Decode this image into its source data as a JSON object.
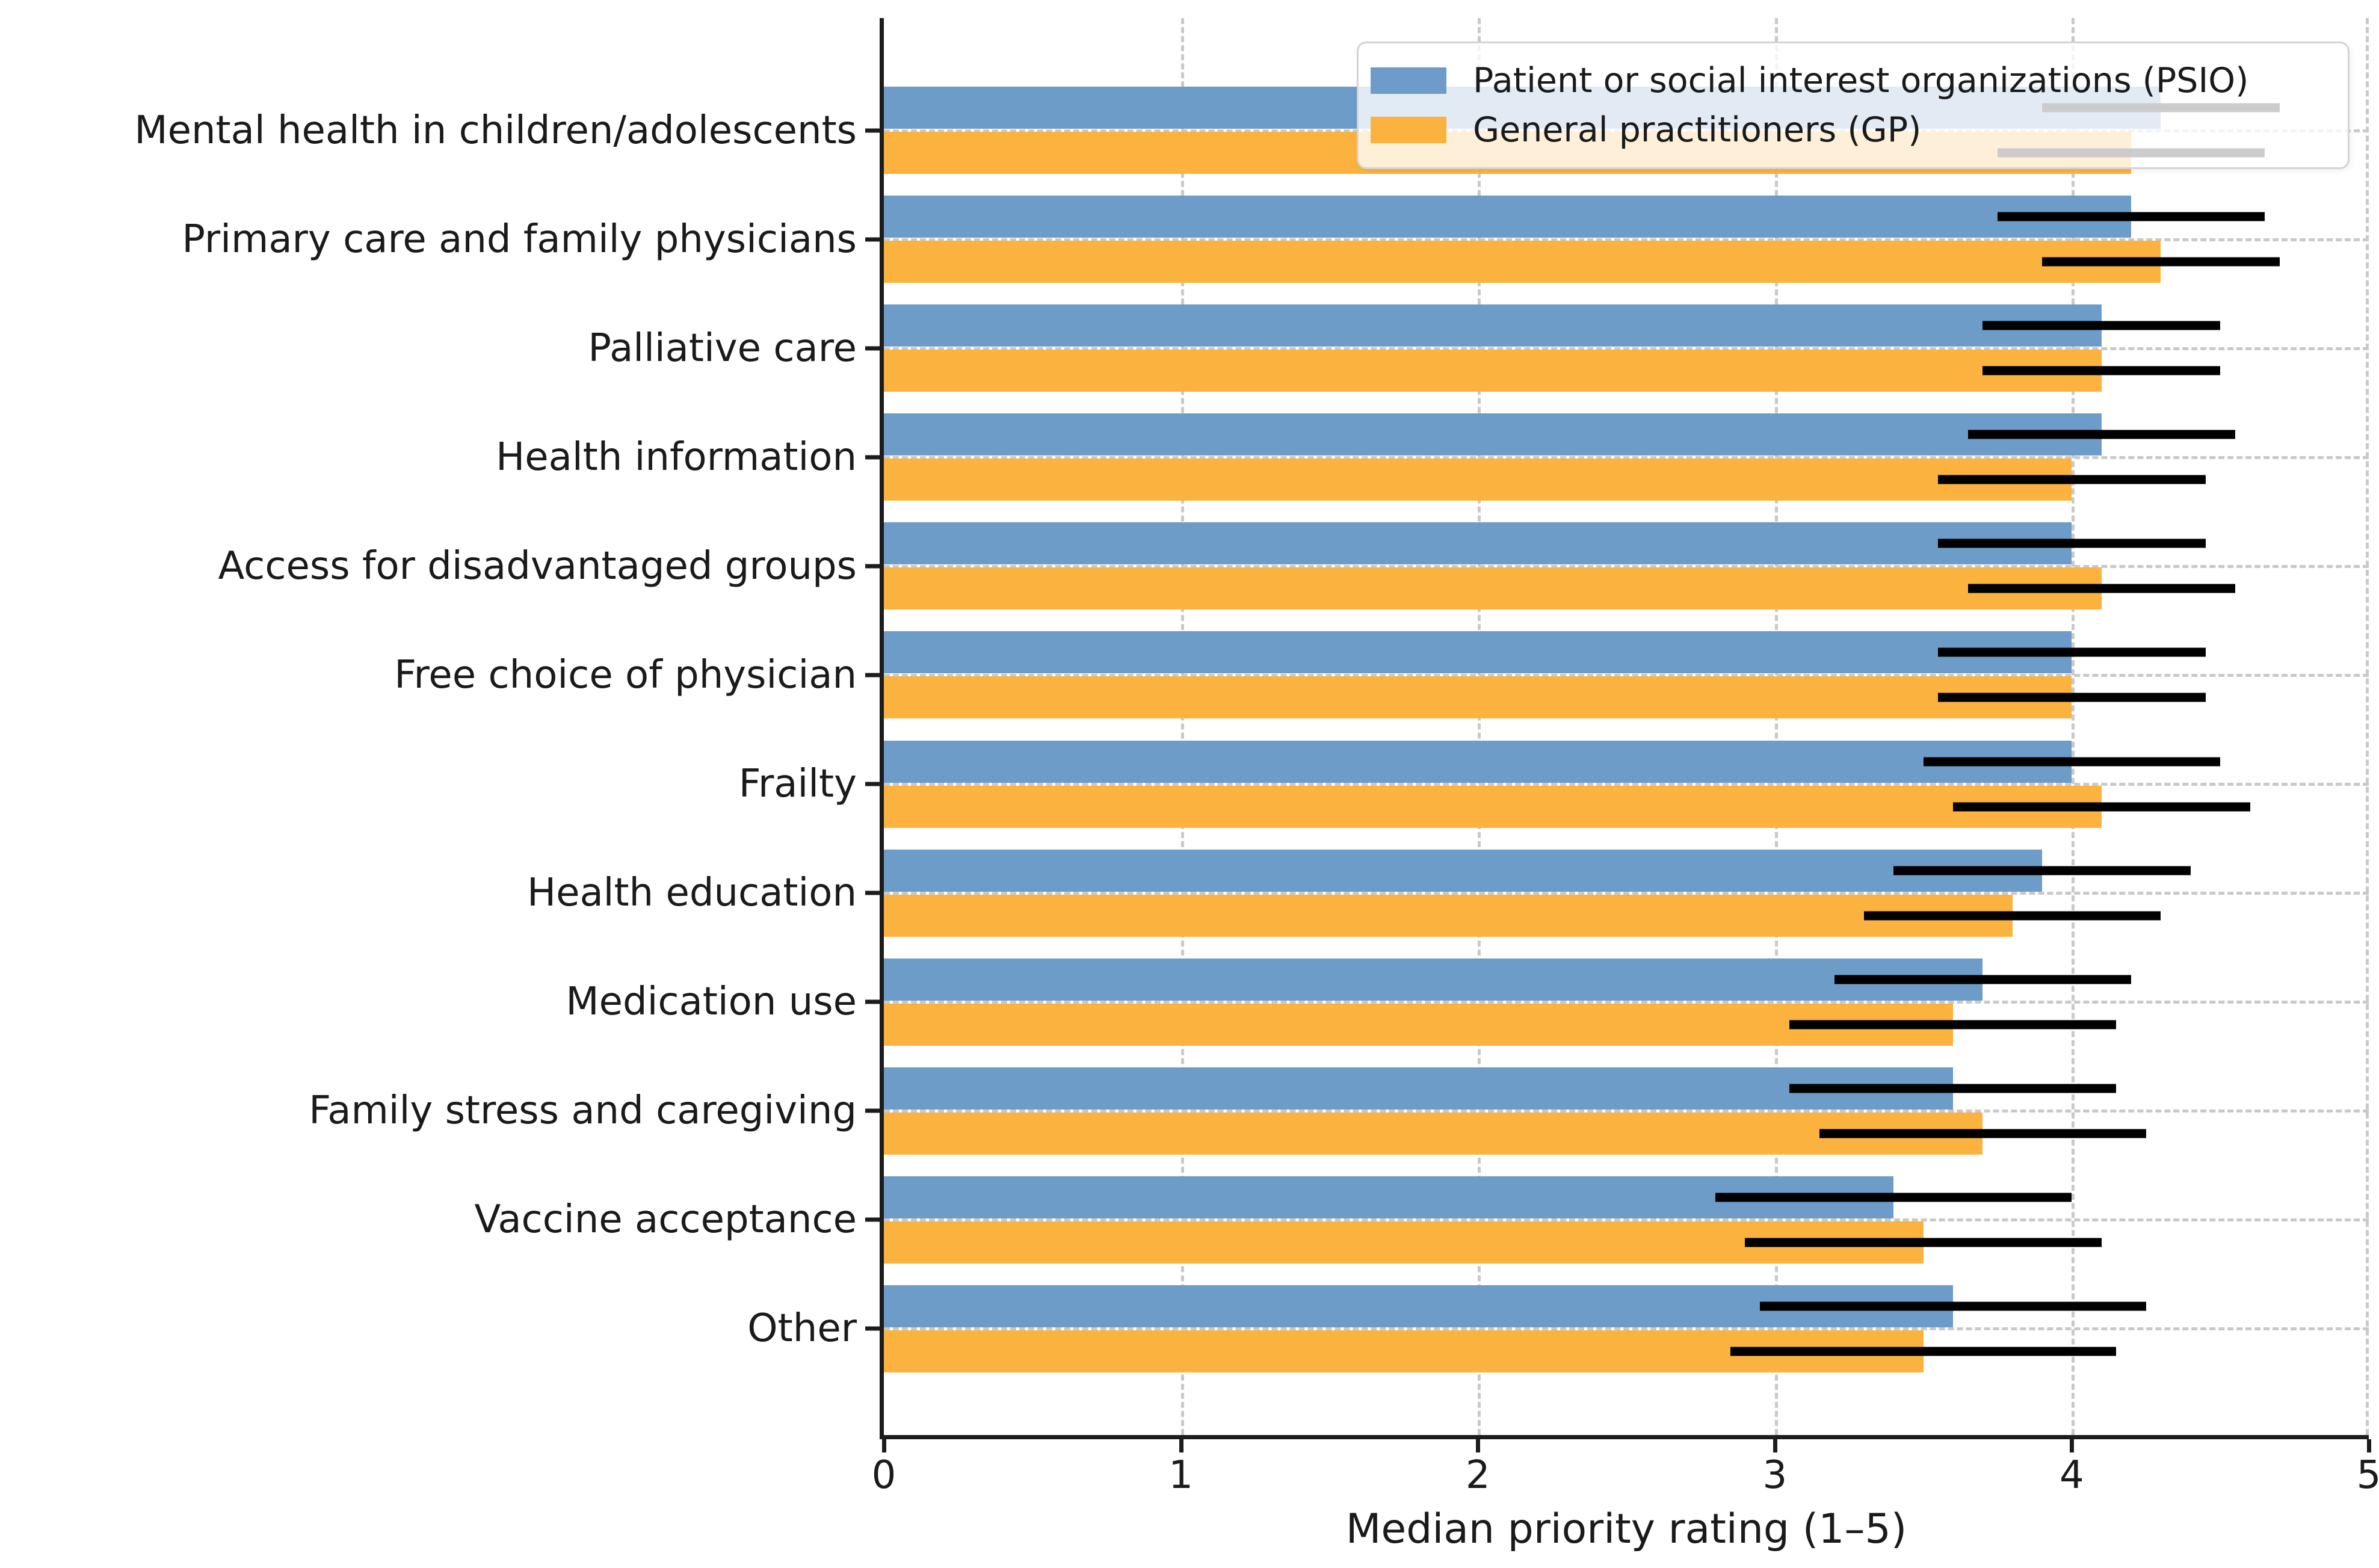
{
  "chart_data": {
    "type": "bar",
    "orientation": "horizontal-grouped",
    "title": "",
    "xlabel": "Median priority rating (1–5)",
    "xlim": [
      0,
      5
    ],
    "xticks": [
      "0",
      "1",
      "2",
      "3",
      "4",
      "5"
    ],
    "grid": {
      "x": "dashed",
      "y": "dashed"
    },
    "legend_position": "upper right",
    "categories": [
      "Mental health in children/adolescents",
      "Primary care and family physicians",
      "Palliative care",
      "Health information",
      "Access for disadvantaged groups",
      "Free choice of physician",
      "Frailty",
      "Health education",
      "Medication use",
      "Family stress and caregiving",
      "Vaccine acceptance",
      "Other"
    ],
    "series": [
      {
        "name": "Patient or social interest organizations (PSIO)",
        "color": "#6d9cc9",
        "values": [
          4.3,
          4.2,
          4.1,
          4.1,
          4.0,
          4.0,
          4.0,
          3.9,
          3.7,
          3.6,
          3.4,
          3.6
        ],
        "error_low": [
          3.9,
          3.75,
          3.7,
          3.65,
          3.55,
          3.55,
          3.5,
          3.4,
          3.2,
          3.05,
          2.8,
          2.95
        ],
        "error_high": [
          4.7,
          4.65,
          4.5,
          4.55,
          4.45,
          4.45,
          4.5,
          4.4,
          4.2,
          4.15,
          4.0,
          4.25
        ]
      },
      {
        "name": "General practitioners (GP)",
        "color": "#fbb23e",
        "values": [
          4.2,
          4.3,
          4.1,
          4.0,
          4.1,
          4.0,
          4.1,
          3.8,
          3.6,
          3.7,
          3.5,
          3.5
        ],
        "error_low": [
          3.75,
          3.9,
          3.7,
          3.55,
          3.65,
          3.55,
          3.6,
          3.3,
          3.05,
          3.15,
          2.9,
          2.85
        ],
        "error_high": [
          4.65,
          4.7,
          4.5,
          4.45,
          4.55,
          4.45,
          4.6,
          4.3,
          4.15,
          4.25,
          4.1,
          4.15
        ]
      }
    ],
    "error_bar_color": "#000000"
  },
  "styles": {
    "background": "#ffffff",
    "spine_color": "#1c1c1c",
    "grid_color": "#c9c9c9",
    "text_color": "#1a1a1a",
    "legend_background": "rgba(255,255,255,0.8)",
    "legend_border": "#d4d4d4"
  }
}
